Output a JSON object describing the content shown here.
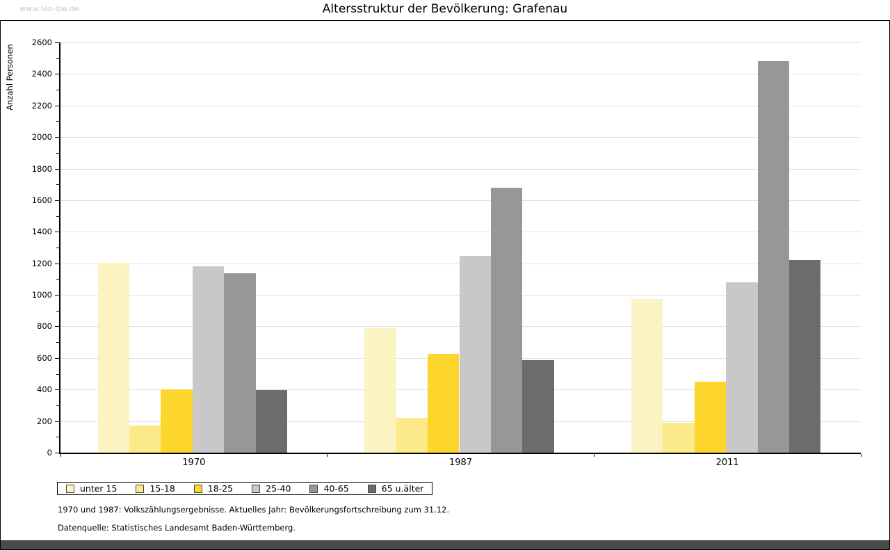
{
  "watermark": "www.leo-bw.de",
  "title": "Altersstruktur der Bevölkerung: Grafenau",
  "chart_data": {
    "type": "bar",
    "title": "Altersstruktur der Bevölkerung: Grafenau",
    "xlabel": "",
    "ylabel": "Anzahl Personen",
    "ylim": [
      0,
      2600
    ],
    "ytick_label_step": 200,
    "ytick_minor_step": 100,
    "grid": true,
    "legend_position": "bottom-left",
    "categories": [
      "1970",
      "1987",
      "2011"
    ],
    "series": [
      {
        "name": "unter 15",
        "color": "#FBF3C2",
        "values": [
          1205,
          790,
          975
        ]
      },
      {
        "name": "15-18",
        "color": "#FCE98A",
        "values": [
          170,
          220,
          190
        ]
      },
      {
        "name": "18-25",
        "color": "#FCD52D",
        "values": [
          400,
          625,
          450
        ]
      },
      {
        "name": "25-40",
        "color": "#C8C8C8",
        "values": [
          1180,
          1245,
          1080
        ]
      },
      {
        "name": "40-65",
        "color": "#979797",
        "values": [
          1135,
          1680,
          2480
        ]
      },
      {
        "name": "65 u.älter",
        "color": "#6C6C6C",
        "values": [
          395,
          585,
          1220
        ]
      }
    ]
  },
  "footnotes": [
    "1970 und 1987: Volkszählungsergebnisse. Aktuelles Jahr: Bevölkerungsfortschreibung zum 31.12.",
    "Datenquelle: Statistisches Landesamt Baden-Württemberg."
  ],
  "colors": {
    "grid": "#E0E0E0",
    "axis": "#000000",
    "tick": "#000000",
    "watermark": "#C9C9C9",
    "bottom_strip": "#4A4A4A",
    "legend_swatch_border": "#444444"
  }
}
